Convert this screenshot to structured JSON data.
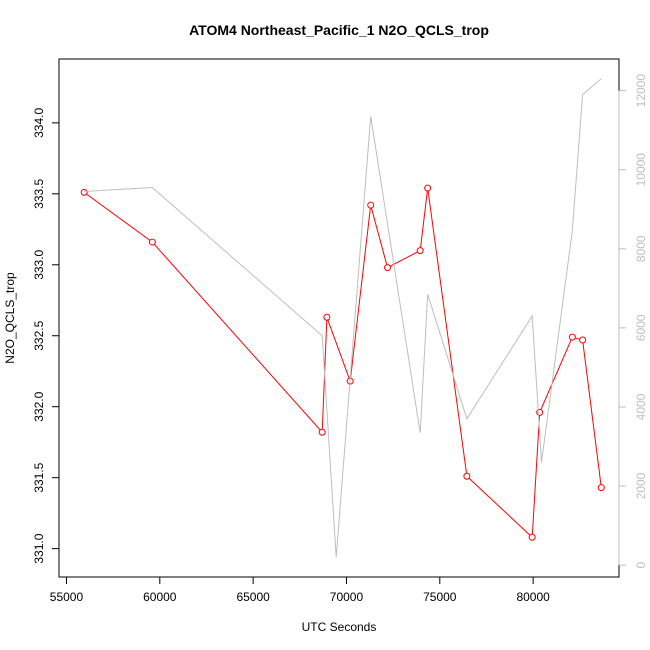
{
  "chart_data": {
    "type": "line",
    "title": "ATOM4 Northeast_Pacific_1 N2O_QCLS_trop",
    "xlabel": "UTC Seconds",
    "ylabel": "N2O_QCLS_trop",
    "xlim": [
      54600,
      84600
    ],
    "ylim": [
      330.8,
      334.45
    ],
    "y2lim": [
      -300,
      12800
    ],
    "xticks": [
      55000,
      60000,
      65000,
      70000,
      75000,
      80000
    ],
    "xtick_labels": [
      "55000",
      "60000",
      "65000",
      "70000",
      "75000",
      "80000"
    ],
    "yticks": [
      331.0,
      331.5,
      332.0,
      332.5,
      333.0,
      333.5,
      334.0
    ],
    "ytick_labels": [
      "331.0",
      "331.5",
      "332.0",
      "332.5",
      "333.0",
      "333.5",
      "334.0"
    ],
    "y2ticks": [
      0,
      2000,
      4000,
      6000,
      8000,
      10000,
      12000
    ],
    "y2tick_labels": [
      "0",
      "2000",
      "4000",
      "6000",
      "8000",
      "10000",
      "12000"
    ],
    "series": [
      {
        "axis": "left",
        "color": "#ff0000",
        "markers": "open-circle",
        "x": [
          55950,
          59600,
          68700,
          68950,
          70200,
          71300,
          72200,
          73950,
          74350,
          76450,
          79950,
          80350,
          82100,
          82650,
          83650
        ],
        "y": [
          333.51,
          333.16,
          331.82,
          332.63,
          332.18,
          333.42,
          332.98,
          333.1,
          333.54,
          331.51,
          331.08,
          331.96,
          332.49,
          332.47,
          331.43
        ]
      },
      {
        "axis": "right",
        "color": "#bebebe",
        "markers": "none",
        "x": [
          55950,
          59600,
          68700,
          69450,
          71300,
          73950,
          74350,
          76450,
          79950,
          80450,
          82100,
          82650,
          83650
        ],
        "y": [
          9450,
          9550,
          5800,
          200,
          11350,
          3350,
          6850,
          3700,
          6300,
          2600,
          8450,
          11900,
          12300
        ]
      }
    ]
  }
}
